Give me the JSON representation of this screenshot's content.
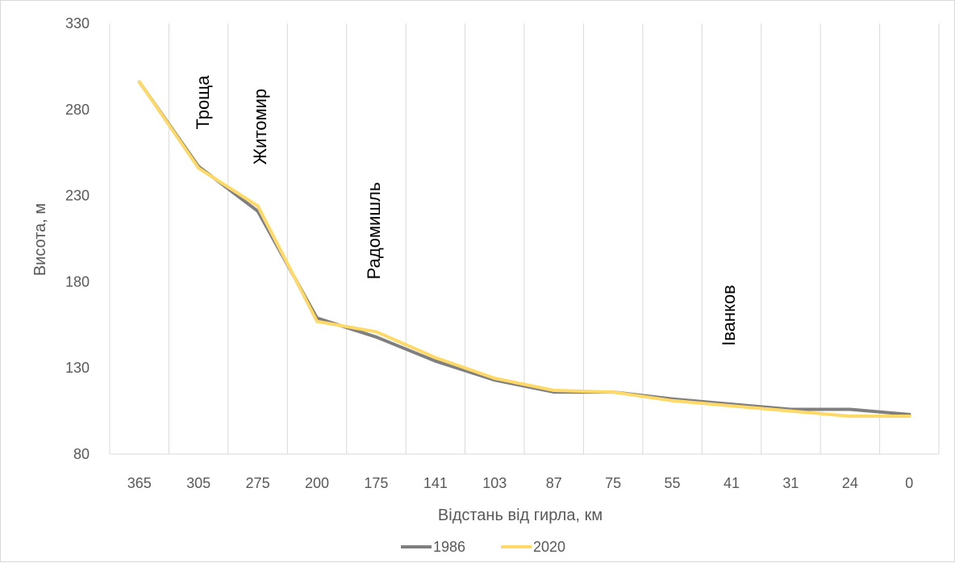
{
  "chart_data": {
    "type": "line",
    "title": "",
    "xlabel": "Відстань від гирла, км",
    "ylabel": "Висота, м",
    "categories": [
      "365",
      "305",
      "275",
      "200",
      "175",
      "141",
      "103",
      "87",
      "75",
      "55",
      "41",
      "31",
      "24",
      "0"
    ],
    "ylim": [
      80,
      330
    ],
    "yticks": [
      "80",
      "130",
      "180",
      "230",
      "280",
      "330"
    ],
    "grid": "vertical",
    "legend_position": "bottom",
    "series": [
      {
        "name": "1986",
        "color": "#7f7f7f",
        "values": [
          296,
          247,
          221,
          159,
          148,
          134,
          123,
          116,
          116,
          112,
          109,
          106,
          106,
          103
        ]
      },
      {
        "name": "2020",
        "color": "#ffd966",
        "values": [
          296,
          246,
          224,
          157,
          151,
          136,
          124,
          117,
          116,
          111,
          108,
          105,
          102,
          102
        ]
      }
    ],
    "annotations": [
      {
        "text": "Троща",
        "category_index": 1
      },
      {
        "text": "Житомир",
        "category_index": 2
      },
      {
        "text": "Радомишль",
        "category_index": 4
      },
      {
        "text": "Іванков",
        "category_index": 10
      }
    ]
  }
}
